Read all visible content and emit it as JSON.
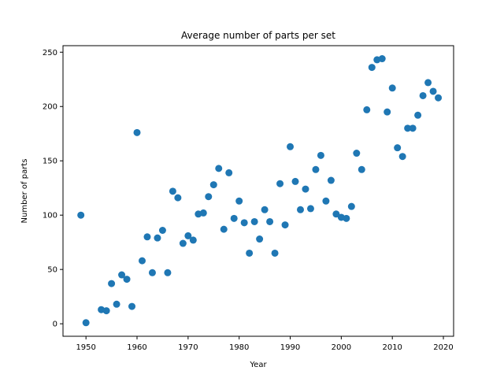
{
  "chart_data": {
    "type": "scatter",
    "title": "Average number of parts per set",
    "xlabel": "Year",
    "ylabel": "Number of parts",
    "xlim": [
      1945.5,
      2022
    ],
    "ylim": [
      -11.5,
      256
    ],
    "xticks": [
      1950,
      1960,
      1970,
      1980,
      1990,
      2000,
      2010,
      2020
    ],
    "yticks": [
      0,
      50,
      100,
      150,
      200,
      250
    ],
    "grid": false,
    "legend": "none",
    "marker_color": "#1f77b4",
    "series": [
      {
        "x": [
          1949,
          1950,
          1953,
          1954,
          1955,
          1956,
          1957,
          1958,
          1959,
          1960,
          1961,
          1962,
          1963,
          1964,
          1965,
          1966,
          1967,
          1968,
          1969,
          1970,
          1971,
          1972,
          1973,
          1974,
          1975,
          1976,
          1977,
          1978,
          1979,
          1980,
          1981,
          1982,
          1983,
          1984,
          1985,
          1986,
          1987,
          1988,
          1989,
          1990,
          1991,
          1992,
          1993,
          1994,
          1995,
          1996,
          1997,
          1998,
          1999,
          2000,
          2001,
          2002,
          2003,
          2004,
          2005,
          2006,
          2007,
          2008,
          2009,
          2010,
          2011,
          2012,
          2013,
          2014,
          2015,
          2016,
          2017,
          2018,
          2019
        ],
        "y": [
          100,
          1,
          13,
          12,
          37,
          18,
          45,
          41,
          16,
          176,
          58,
          80,
          47,
          79,
          86,
          47,
          122,
          116,
          74,
          81,
          77,
          101,
          102,
          117,
          128,
          143,
          87,
          139,
          97,
          113,
          93,
          65,
          94,
          78,
          105,
          94,
          65,
          129,
          91,
          163,
          131,
          105,
          124,
          106,
          142,
          155,
          113,
          132,
          101,
          98,
          97,
          108,
          157,
          142,
          197,
          236,
          243,
          244,
          195,
          217,
          162,
          154,
          180,
          180,
          192,
          210,
          222,
          214,
          208
        ]
      }
    ]
  }
}
